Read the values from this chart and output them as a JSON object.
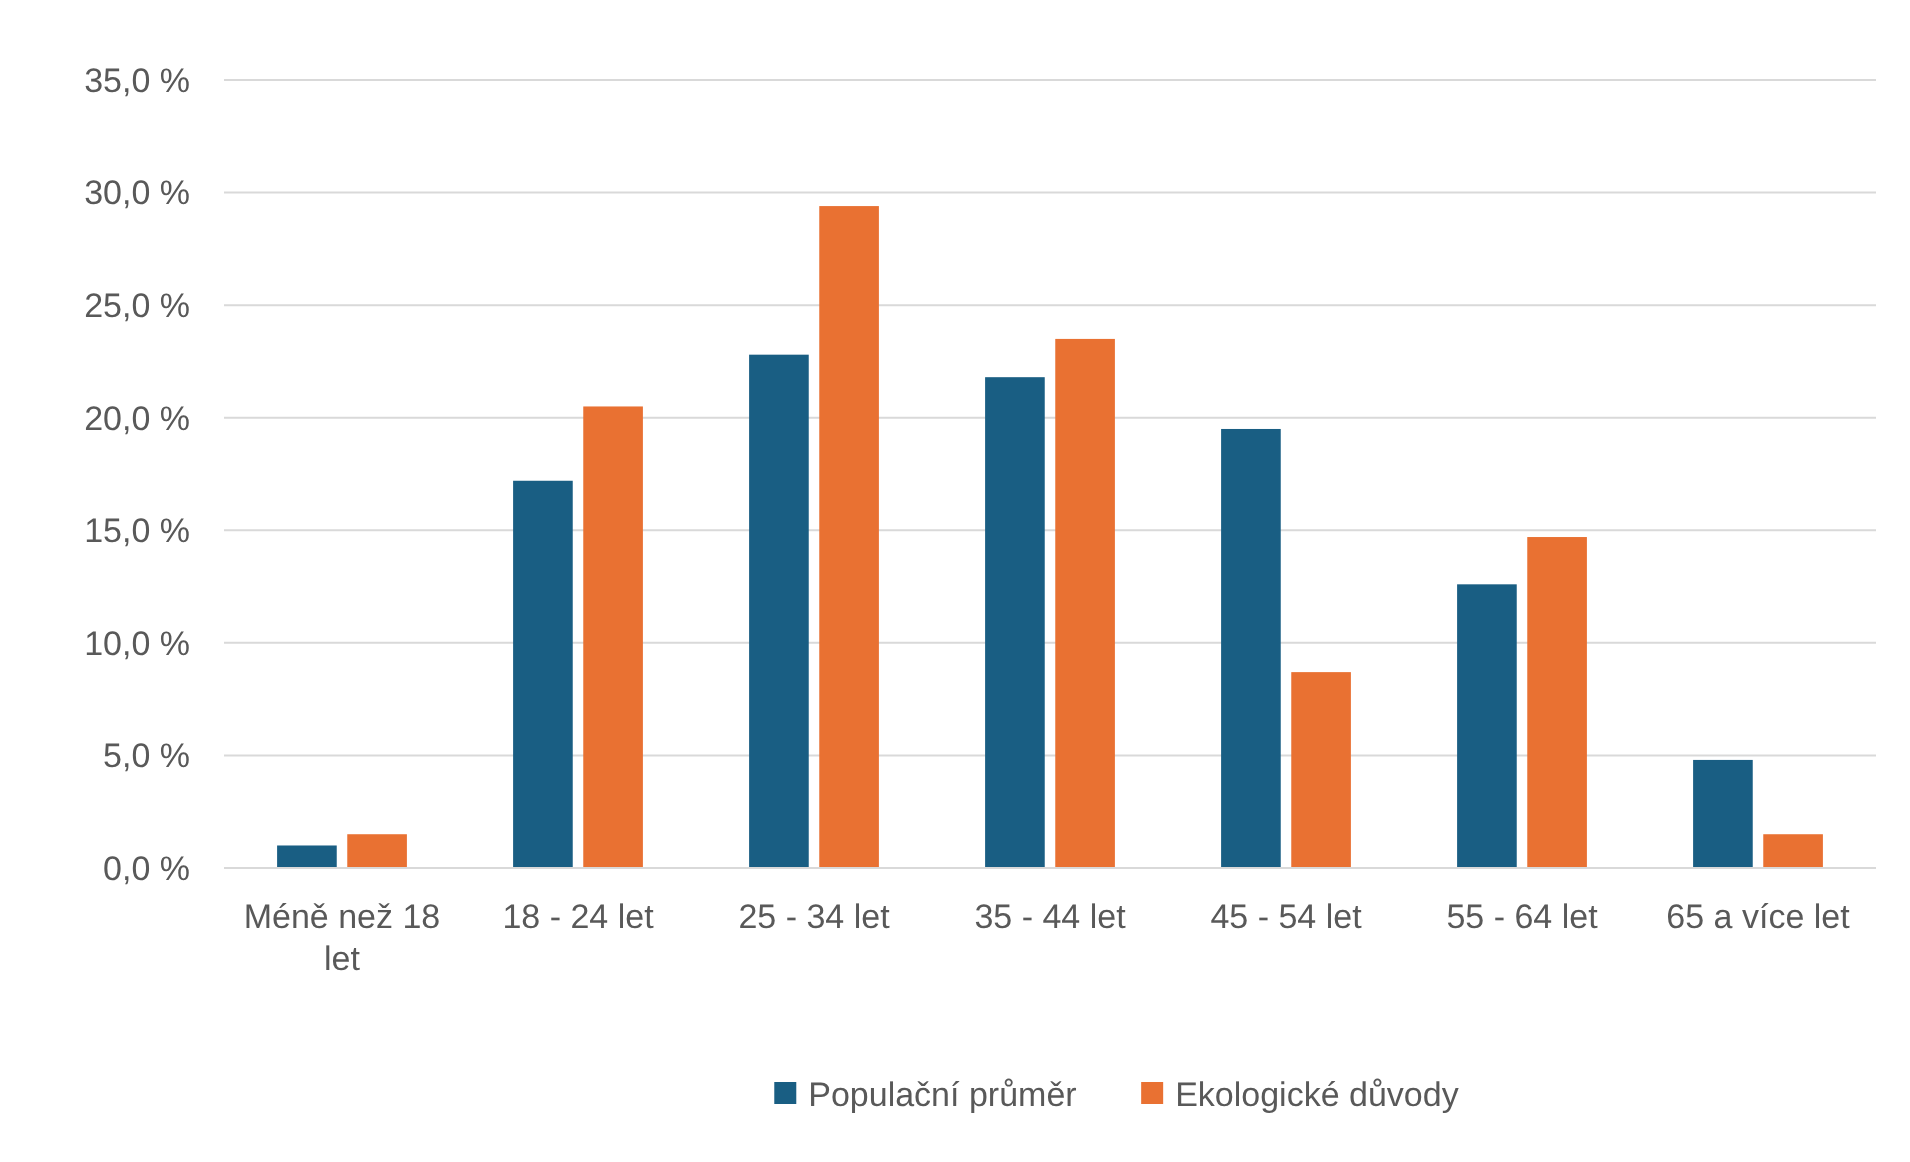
{
  "chart_data": {
    "type": "bar",
    "categories": [
      "Méně než 18 let",
      "18 - 24 let",
      "25 - 34 let",
      "35 - 44 let",
      "45 - 54 let",
      "55 - 64 let",
      "65 a více let"
    ],
    "series": [
      {
        "name": "Populační průměr",
        "color": "#195e83",
        "values": [
          1.0,
          17.2,
          22.8,
          21.8,
          19.5,
          12.6,
          4.8
        ]
      },
      {
        "name": "Ekologické důvody",
        "color": "#e97132",
        "values": [
          1.5,
          20.5,
          29.4,
          23.5,
          8.7,
          14.7,
          1.5
        ]
      }
    ],
    "ylim": [
      0,
      35
    ],
    "yticks": [
      {
        "value": 0,
        "label": "0,0 %"
      },
      {
        "value": 5,
        "label": "5,0 %"
      },
      {
        "value": 10,
        "label": "10,0 %"
      },
      {
        "value": 15,
        "label": "15,0 %"
      },
      {
        "value": 20,
        "label": "20,0 %"
      },
      {
        "value": 25,
        "label": "25,0 %"
      },
      {
        "value": 30,
        "label": "30,0 %"
      },
      {
        "value": 35,
        "label": "35,0 %"
      }
    ],
    "grid": "y",
    "legend": "bottom"
  }
}
